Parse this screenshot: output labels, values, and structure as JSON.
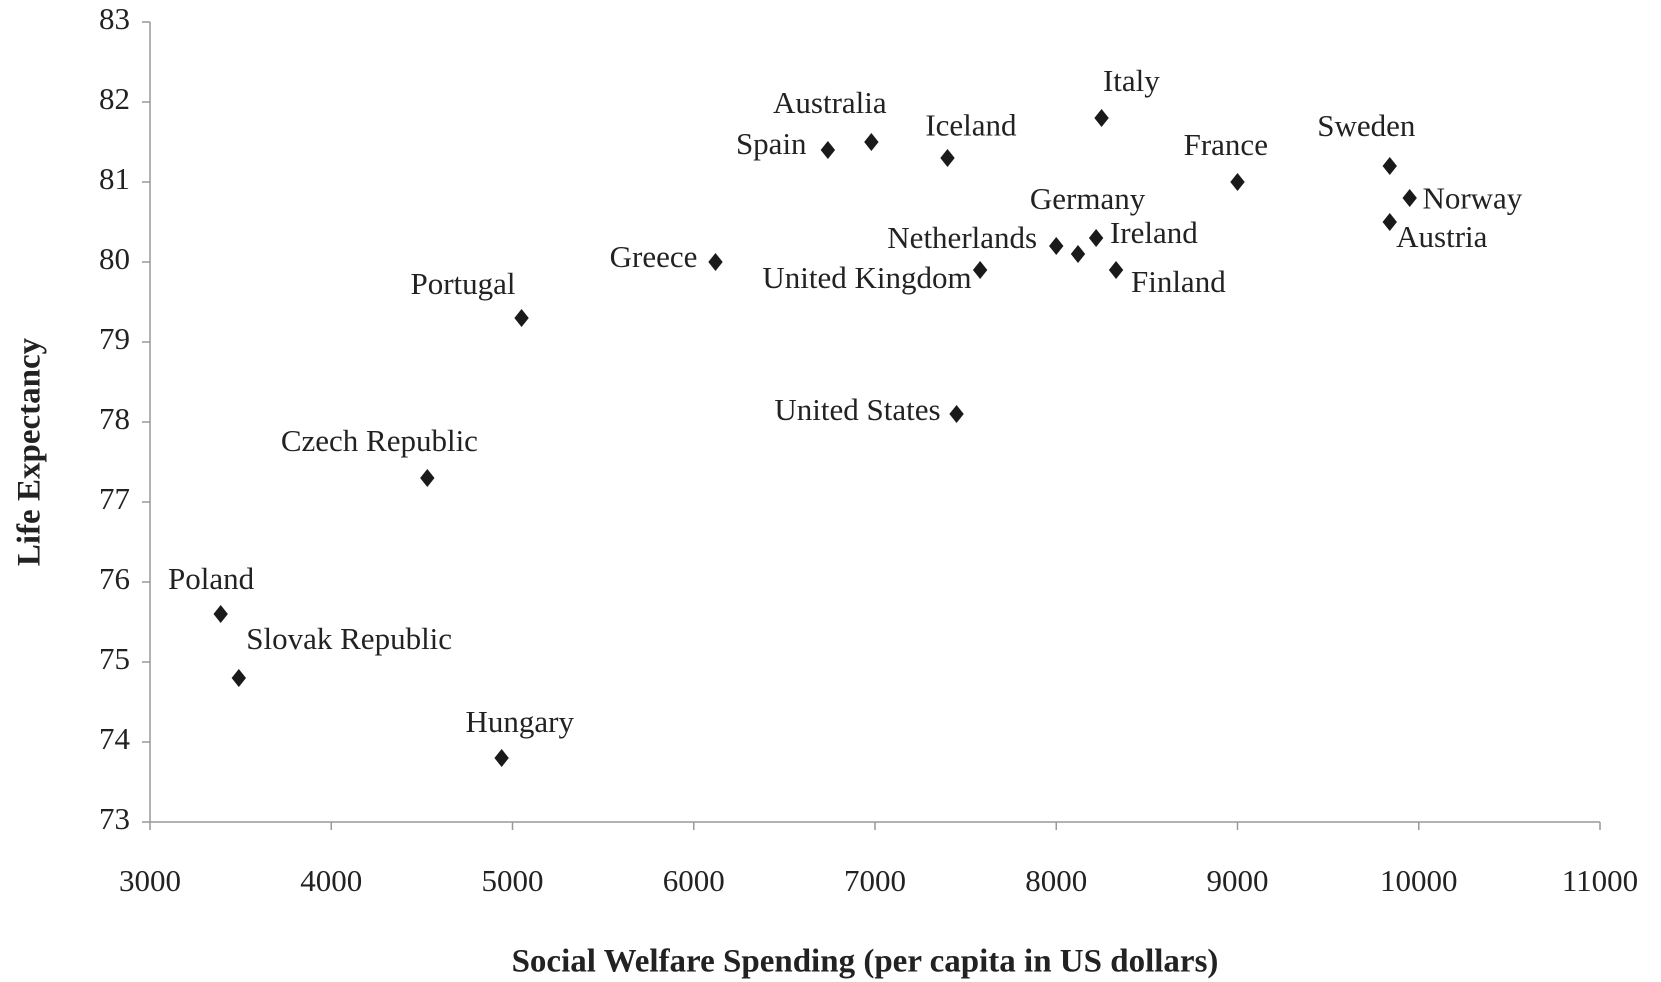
{
  "chart_data": {
    "type": "scatter",
    "xlabel": "Social Welfare Spending (per capita in US dollars)",
    "ylabel": "Life Expectancy",
    "labels": [
      "Poland",
      "Slovak Republic",
      "Hungary",
      "Czech Republic",
      "Portugal",
      "Greece",
      "Spain",
      "Australia",
      "Iceland",
      "United Kingdom",
      "United States",
      "Netherlands",
      "Germany",
      "Ireland",
      "Finland",
      "Italy",
      "France",
      "Sweden",
      "Norway",
      "Austria"
    ],
    "x": [
      3390,
      3490,
      4940,
      4530,
      5050,
      6120,
      6740,
      6980,
      7400,
      7580,
      7450,
      8000,
      8120,
      8220,
      8330,
      8250,
      9000,
      9840,
      9950,
      9840
    ],
    "y": [
      75.6,
      74.8,
      73.8,
      77.3,
      79.3,
      80.0,
      81.4,
      81.5,
      81.3,
      79.9,
      78.1,
      80.2,
      80.1,
      80.3,
      79.9,
      81.8,
      81.0,
      81.2,
      80.8,
      80.5
    ],
    "color": "#1a1a1a",
    "xlim": [
      3000,
      11000
    ],
    "xticks": [
      3000,
      4000,
      5000,
      6000,
      7000,
      8000,
      9000,
      10000,
      11000
    ],
    "ylim": [
      73,
      83
    ],
    "yticks": [
      73,
      74,
      75,
      76,
      77,
      78,
      79,
      80,
      81,
      82,
      83
    ],
    "grid": false
  }
}
